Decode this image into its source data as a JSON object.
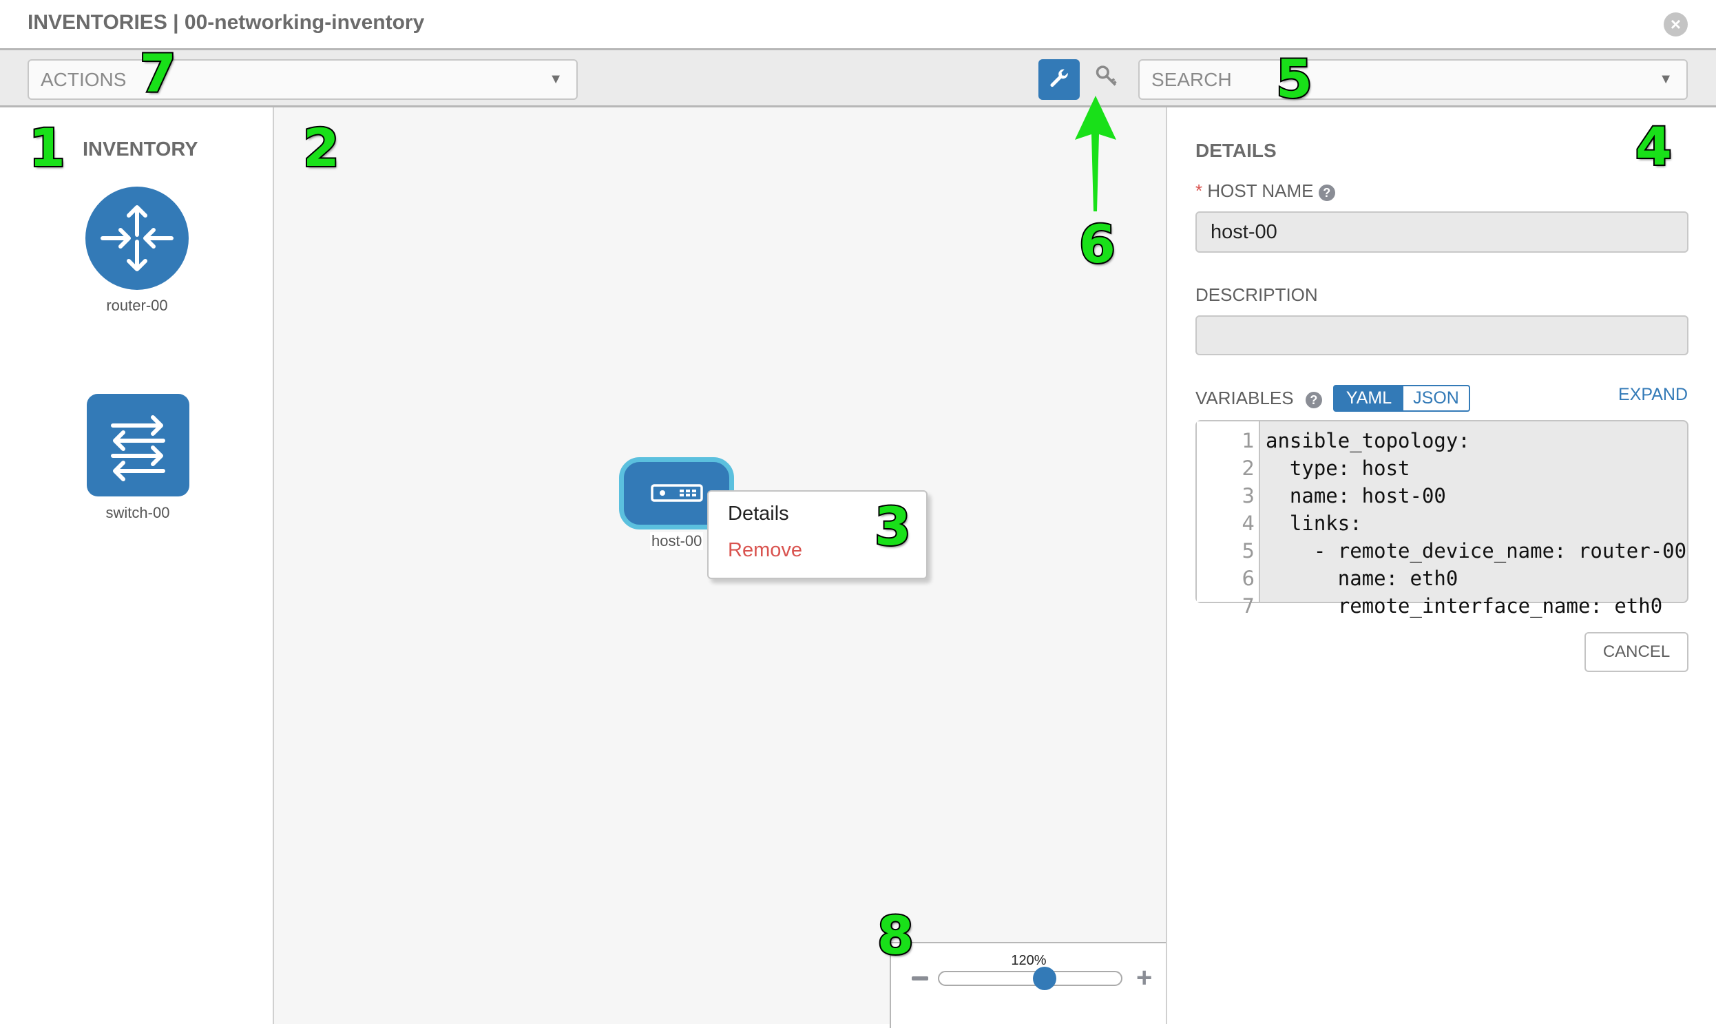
{
  "header": {
    "title": "INVENTORIES | 00-networking-inventory",
    "close_icon": "close-circle-icon"
  },
  "toolbar": {
    "actions_placeholder": "ACTIONS",
    "search_placeholder": "SEARCH",
    "wrench_icon": "wrench-icon",
    "key_icon": "key-icon"
  },
  "inventory": {
    "title": "INVENTORY",
    "items": [
      {
        "label": "router-00",
        "icon": "router-icon"
      },
      {
        "label": "switch-00",
        "icon": "switch-icon"
      }
    ]
  },
  "canvas": {
    "host": {
      "label": "host-00",
      "icon": "host-icon"
    },
    "context_menu": {
      "details": "Details",
      "remove": "Remove"
    },
    "zoom": {
      "value": "120%",
      "level_percent": 120,
      "minus": "−",
      "plus": "+"
    }
  },
  "details": {
    "title": "DETAILS",
    "required_mark": "*",
    "host_name_label": "HOST NAME",
    "host_name_value": "host-00",
    "description_label": "DESCRIPTION",
    "description_value": "",
    "variables_label": "VARIABLES",
    "yaml": "YAML",
    "json": "JSON",
    "expand": "EXPAND",
    "code_lines": [
      "ansible_topology:",
      "  type: host",
      "  name: host-00",
      "  links:",
      "    - remote_device_name: router-00",
      "      name: eth0",
      "      remote_interface_name: eth0"
    ],
    "line_numbers": [
      "1",
      "2",
      "3",
      "4",
      "5",
      "6",
      "7"
    ],
    "cancel": "CANCEL"
  },
  "annotations": [
    "1",
    "2",
    "3",
    "4",
    "5",
    "6",
    "7",
    "8"
  ],
  "colors": {
    "accent": "#337ab7",
    "remove": "#d9534f",
    "node_border": "#5bc0de",
    "annotation": "#19e019"
  }
}
